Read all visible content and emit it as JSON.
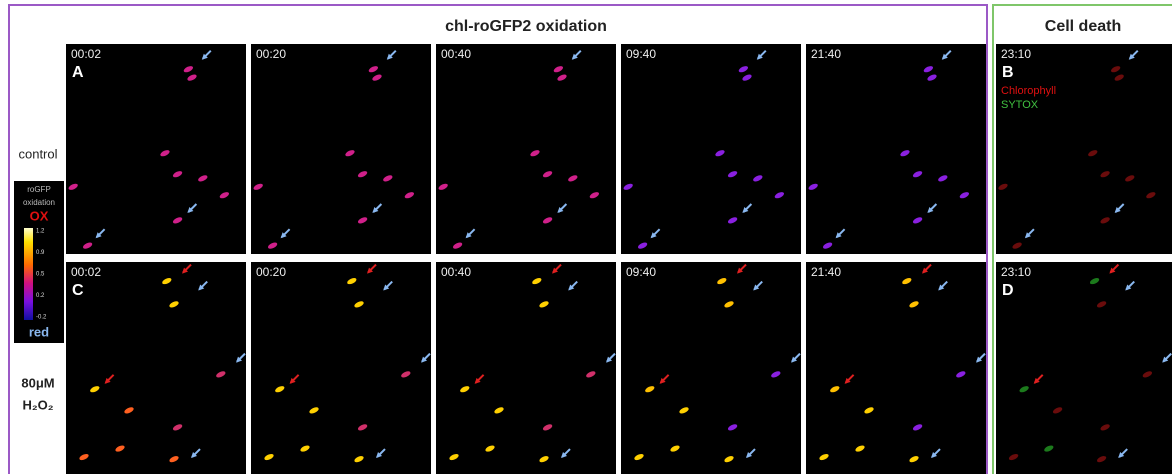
{
  "header": {
    "title": "chl-roGFP2 oxidation",
    "side_title": "Cell death"
  },
  "rows": [
    {
      "label_lines": [
        "control"
      ],
      "panels": [
        {
          "time": "00:02",
          "letter": "A"
        },
        {
          "time": "00:20"
        },
        {
          "time": "00:40"
        },
        {
          "time": "09:40"
        },
        {
          "time": "21:40"
        }
      ],
      "death_panel": {
        "time": "23:10",
        "letter": "B",
        "legend": [
          "Chlorophyll",
          "SYTOX"
        ]
      }
    },
    {
      "label_lines": [
        "80μM",
        "H₂O₂"
      ],
      "panels": [
        {
          "time": "00:02",
          "letter": "C"
        },
        {
          "time": "00:20"
        },
        {
          "time": "00:40"
        },
        {
          "time": "09:40"
        },
        {
          "time": "21:40"
        }
      ],
      "death_panel": {
        "time": "23:10",
        "letter": "D"
      }
    }
  ],
  "colorbar": {
    "title_lines": [
      "roGFP",
      "oxidation"
    ],
    "top_label": "OX",
    "bottom_label": "red",
    "ticks": [
      "1.2",
      "0.9",
      "0.5",
      "0.2",
      "-0.2"
    ]
  }
}
